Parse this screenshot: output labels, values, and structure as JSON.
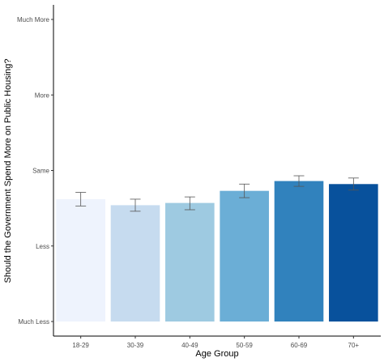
{
  "chart_data": {
    "type": "bar",
    "title": "",
    "xlabel": "Age Group",
    "ylabel": "Should the Government Spend More on Public Housing?",
    "categories": [
      "18-29",
      "30-39",
      "40-49",
      "50-59",
      "60-69",
      "70+"
    ],
    "values": [
      2.62,
      2.54,
      2.57,
      2.73,
      2.86,
      2.82
    ],
    "error_low": [
      2.53,
      2.46,
      2.48,
      2.64,
      2.79,
      2.74
    ],
    "error_high": [
      2.71,
      2.62,
      2.65,
      2.82,
      2.93,
      2.9
    ],
    "ylim": [
      1,
      5
    ],
    "yticks": [
      1,
      2,
      3,
      4,
      5
    ],
    "ytick_labels": [
      "Much Less",
      "Less",
      "Same",
      "More",
      "Much More"
    ],
    "colors": [
      "#eef3fd",
      "#c6dbef",
      "#9ecae1",
      "#6baed6",
      "#3182bd",
      "#08519c"
    ],
    "grid": false,
    "legend": "none"
  }
}
